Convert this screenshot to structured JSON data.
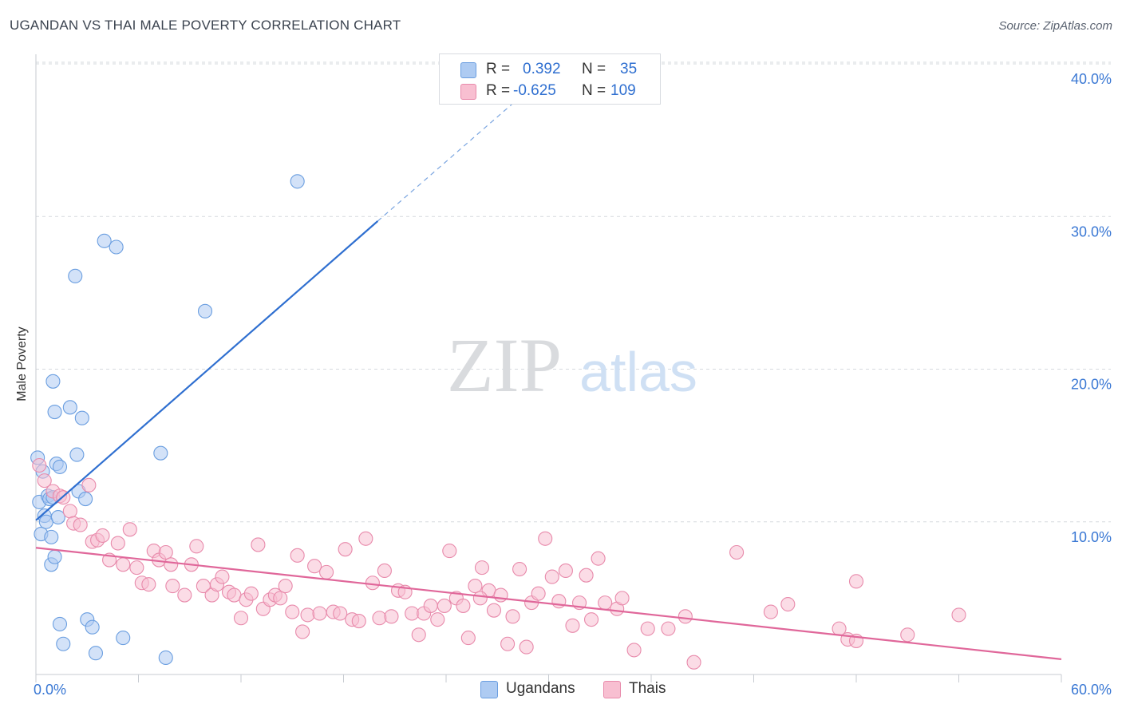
{
  "header": {
    "title": "UGANDAN VS THAI MALE POVERTY CORRELATION CHART",
    "source": "Source: ZipAtlas.com"
  },
  "watermark": {
    "zip": "ZIP",
    "atlas": "atlas"
  },
  "stats": {
    "r_label": "R =",
    "n_label": "N =",
    "rows": [
      {
        "r": "0.392",
        "n": "35",
        "color": "#aecbf2",
        "border": "#6a9ee0"
      },
      {
        "r": "-0.625",
        "n": "109",
        "color": "#f8bfd1",
        "border": "#e88aab"
      }
    ]
  },
  "legend": {
    "items": [
      {
        "label": "Ugandans",
        "color": "#aecbf2",
        "border": "#6a9ee0"
      },
      {
        "label": "Thais",
        "color": "#f8bfd1",
        "border": "#e88aab"
      }
    ]
  },
  "chart_data": {
    "type": "scatter",
    "title": "UGANDAN VS THAI MALE POVERTY CORRELATION CHART",
    "xlabel": "",
    "ylabel": "Male Poverty",
    "xlim": [
      0,
      60
    ],
    "ylim": [
      0,
      40
    ],
    "x_tick_labels": [
      "0.0%",
      "60.0%"
    ],
    "y_tick_labels": [
      "10.0%",
      "20.0%",
      "30.0%",
      "40.0%"
    ],
    "y_ticks": [
      10,
      20,
      30,
      40
    ],
    "grid": "horizontal dashed",
    "legend_position": "bottom-center",
    "series": [
      {
        "name": "Ugandans",
        "color": "#6a9ee0",
        "fill": "#aecbf2",
        "trend": {
          "x": [
            0,
            20
          ],
          "y": [
            10.1,
            29.7
          ],
          "extended_to": [
            28,
            37.5
          ]
        },
        "points": [
          [
            0.1,
            14.2
          ],
          [
            0.2,
            11.3
          ],
          [
            0.3,
            9.2
          ],
          [
            0.4,
            13.3
          ],
          [
            0.5,
            10.4
          ],
          [
            0.6,
            10.0
          ],
          [
            0.7,
            11.7
          ],
          [
            0.8,
            11.5
          ],
          [
            0.9,
            9.0
          ],
          [
            1.0,
            11.6
          ],
          [
            0.9,
            7.2
          ],
          [
            1.0,
            19.2
          ],
          [
            1.1,
            7.7
          ],
          [
            1.1,
            17.2
          ],
          [
            1.2,
            13.8
          ],
          [
            1.3,
            10.3
          ],
          [
            1.4,
            13.6
          ],
          [
            1.4,
            3.3
          ],
          [
            1.6,
            2.0
          ],
          [
            2.0,
            17.5
          ],
          [
            2.3,
            26.1
          ],
          [
            2.4,
            14.4
          ],
          [
            2.5,
            12.0
          ],
          [
            2.7,
            16.8
          ],
          [
            2.9,
            11.5
          ],
          [
            3.0,
            3.6
          ],
          [
            3.3,
            3.1
          ],
          [
            3.5,
            1.4
          ],
          [
            4.0,
            28.4
          ],
          [
            4.7,
            28.0
          ],
          [
            5.1,
            2.4
          ],
          [
            7.3,
            14.5
          ],
          [
            7.6,
            1.1
          ],
          [
            9.9,
            23.8
          ],
          [
            15.3,
            32.3
          ]
        ]
      },
      {
        "name": "Thais",
        "color": "#e88aab",
        "fill": "#f8bfd1",
        "trend": {
          "x": [
            0,
            60
          ],
          "y": [
            8.3,
            1.0
          ]
        },
        "points": [
          [
            0.2,
            13.7
          ],
          [
            0.5,
            12.7
          ],
          [
            1.0,
            12.0
          ],
          [
            1.4,
            11.7
          ],
          [
            1.6,
            11.6
          ],
          [
            2.0,
            10.7
          ],
          [
            2.2,
            9.9
          ],
          [
            2.6,
            9.8
          ],
          [
            3.1,
            12.4
          ],
          [
            3.3,
            8.7
          ],
          [
            3.6,
            8.8
          ],
          [
            3.9,
            9.1
          ],
          [
            4.3,
            7.5
          ],
          [
            4.8,
            8.6
          ],
          [
            5.1,
            7.2
          ],
          [
            5.5,
            9.5
          ],
          [
            5.9,
            7.0
          ],
          [
            6.2,
            6.0
          ],
          [
            6.6,
            5.9
          ],
          [
            6.9,
            8.1
          ],
          [
            7.2,
            7.5
          ],
          [
            7.6,
            8.0
          ],
          [
            7.9,
            7.2
          ],
          [
            8.0,
            5.8
          ],
          [
            8.7,
            5.2
          ],
          [
            9.1,
            7.2
          ],
          [
            9.4,
            8.4
          ],
          [
            9.8,
            5.8
          ],
          [
            10.3,
            5.2
          ],
          [
            10.6,
            5.9
          ],
          [
            10.9,
            6.4
          ],
          [
            11.3,
            5.4
          ],
          [
            11.6,
            5.2
          ],
          [
            12.0,
            3.7
          ],
          [
            12.3,
            4.9
          ],
          [
            12.6,
            5.3
          ],
          [
            13.0,
            8.5
          ],
          [
            13.3,
            4.3
          ],
          [
            13.7,
            4.9
          ],
          [
            14.0,
            5.2
          ],
          [
            14.3,
            5.0
          ],
          [
            14.6,
            5.8
          ],
          [
            15.0,
            4.1
          ],
          [
            15.3,
            7.8
          ],
          [
            15.6,
            2.8
          ],
          [
            15.9,
            3.9
          ],
          [
            16.3,
            7.1
          ],
          [
            16.6,
            4.0
          ],
          [
            17.0,
            6.7
          ],
          [
            17.4,
            4.1
          ],
          [
            17.8,
            4.0
          ],
          [
            18.1,
            8.2
          ],
          [
            18.5,
            3.6
          ],
          [
            18.9,
            3.5
          ],
          [
            19.3,
            8.9
          ],
          [
            19.7,
            6.0
          ],
          [
            20.1,
            3.7
          ],
          [
            20.4,
            6.8
          ],
          [
            20.8,
            3.8
          ],
          [
            21.2,
            5.5
          ],
          [
            21.6,
            5.4
          ],
          [
            22.0,
            4.0
          ],
          [
            22.4,
            2.6
          ],
          [
            22.7,
            4.0
          ],
          [
            23.1,
            4.5
          ],
          [
            23.5,
            3.6
          ],
          [
            23.9,
            4.5
          ],
          [
            24.2,
            8.1
          ],
          [
            24.6,
            5.0
          ],
          [
            25.0,
            4.5
          ],
          [
            25.3,
            2.4
          ],
          [
            25.7,
            5.8
          ],
          [
            26.1,
            7.0
          ],
          [
            26.5,
            5.5
          ],
          [
            26.8,
            4.2
          ],
          [
            27.2,
            5.2
          ],
          [
            27.6,
            2.0
          ],
          [
            27.9,
            3.8
          ],
          [
            28.3,
            6.9
          ],
          [
            28.7,
            1.8
          ],
          [
            29.0,
            4.7
          ],
          [
            29.4,
            5.3
          ],
          [
            29.8,
            8.9
          ],
          [
            30.2,
            6.4
          ],
          [
            30.6,
            4.8
          ],
          [
            31.0,
            6.8
          ],
          [
            31.4,
            3.2
          ],
          [
            31.8,
            4.7
          ],
          [
            32.2,
            6.5
          ],
          [
            32.5,
            3.6
          ],
          [
            32.9,
            7.6
          ],
          [
            33.3,
            4.7
          ],
          [
            34.0,
            4.3
          ],
          [
            34.3,
            5.0
          ],
          [
            35.0,
            1.6
          ],
          [
            35.8,
            3.0
          ],
          [
            37.0,
            3.0
          ],
          [
            38.0,
            3.8
          ],
          [
            38.5,
            0.8
          ],
          [
            41.0,
            8.0
          ],
          [
            43.0,
            4.1
          ],
          [
            44.0,
            4.6
          ],
          [
            47.0,
            3.0
          ],
          [
            47.5,
            2.3
          ],
          [
            48.0,
            2.2
          ],
          [
            48.0,
            6.1
          ],
          [
            51.0,
            2.6
          ],
          [
            54.0,
            3.9
          ],
          [
            26.0,
            5.0
          ]
        ]
      }
    ]
  }
}
